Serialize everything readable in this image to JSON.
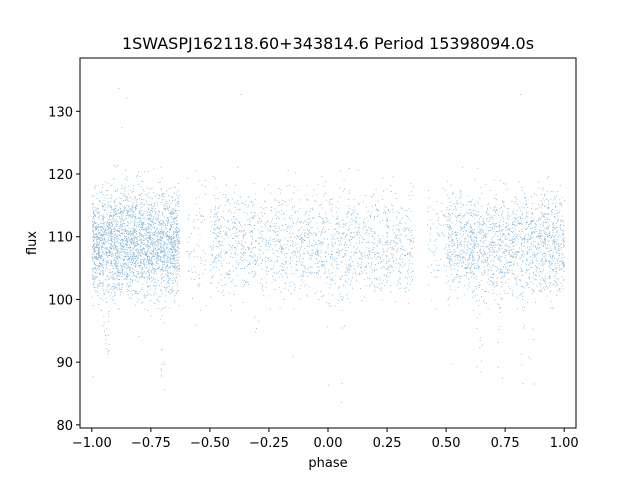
{
  "chart_data": {
    "type": "scatter",
    "title": "1SWASPJ162118.60+343814.6 Period 15398094.0s",
    "xlabel": "phase",
    "ylabel": "flux",
    "xlim": [
      -1.05,
      1.05
    ],
    "ylim": [
      79.5,
      138.5
    ],
    "xticks": [
      -1.0,
      -0.75,
      -0.5,
      -0.25,
      0.0,
      0.25,
      0.5,
      0.75,
      1.0
    ],
    "xtick_labels": [
      "−1.00",
      "−0.75",
      "−0.50",
      "−0.25",
      "0.00",
      "0.25",
      "0.50",
      "0.75",
      "1.00"
    ],
    "yticks": [
      80,
      90,
      100,
      110,
      120,
      130
    ],
    "ytick_labels": [
      "80",
      "90",
      "100",
      "110",
      "120",
      "130"
    ],
    "grid": false,
    "point_color": "#1f77b4",
    "series": [
      {
        "median_flux": 109,
        "core_flux_range": [
          100,
          118
        ],
        "observed_phase_ranges": [
          [
            -1.0,
            -0.63
          ],
          [
            -0.5,
            0.36
          ],
          [
            0.5,
            1.0
          ]
        ],
        "sparse_phase_ranges": [
          [
            -0.6,
            -0.52
          ],
          [
            0.42,
            0.5
          ]
        ],
        "dip_phases": [
          -0.94,
          -0.7,
          -0.3,
          -0.15,
          0.0,
          0.06,
          0.64,
          0.73,
          0.82,
          0.86
        ],
        "min_flux": 82,
        "max_flux": 135
      }
    ]
  }
}
